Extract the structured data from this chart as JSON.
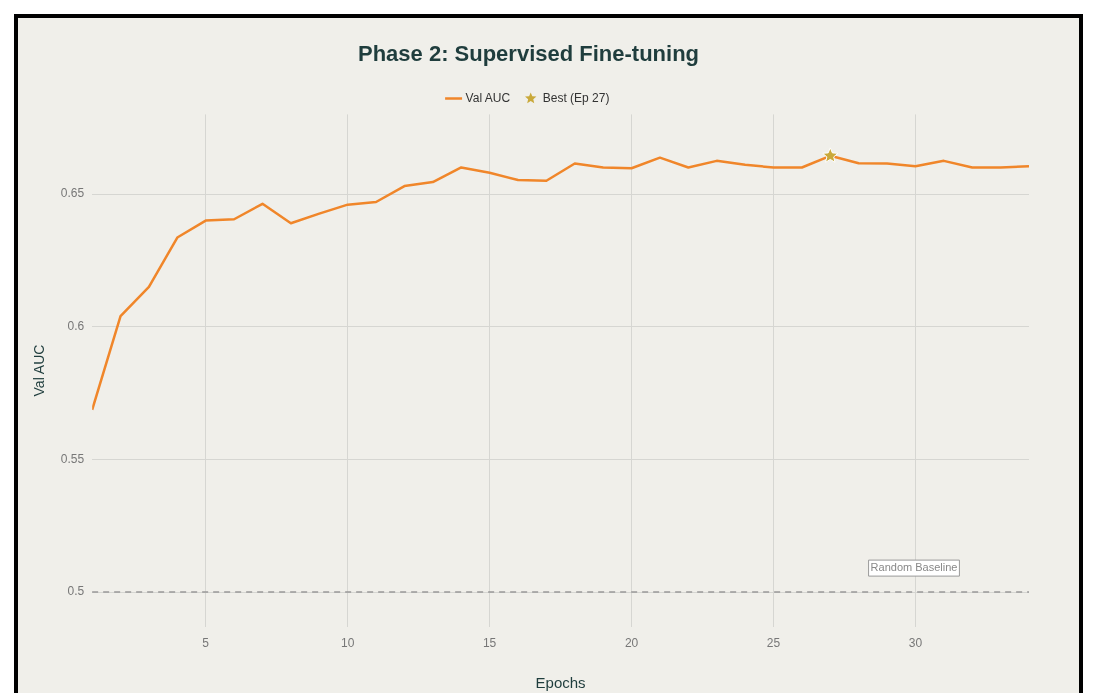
{
  "chart_data": {
    "type": "line",
    "title": "Phase 2: Supervised Fine-tuning",
    "xlabel": "Epochs",
    "ylabel": "Val AUC",
    "x": [
      1,
      2,
      3,
      4,
      5,
      6,
      7,
      8,
      9,
      10,
      11,
      12,
      13,
      14,
      15,
      16,
      17,
      18,
      19,
      20,
      21,
      22,
      23,
      24,
      25,
      26,
      27,
      28,
      29,
      30,
      31,
      32,
      33,
      34
    ],
    "series": [
      {
        "name": "Val AUC",
        "color": "#f0862a",
        "marker": "none",
        "values": [
          0.5687,
          0.604,
          0.615,
          0.6336,
          0.64,
          0.6405,
          0.6463,
          0.639,
          0.6426,
          0.646,
          0.647,
          0.653,
          0.6545,
          0.66,
          0.658,
          0.6553,
          0.655,
          0.6615,
          0.66,
          0.6597,
          0.6637,
          0.66,
          0.6625,
          0.661,
          0.66,
          0.66,
          0.6644,
          0.6616,
          0.6615,
          0.6605,
          0.6625,
          0.66,
          0.66,
          0.6605
        ]
      },
      {
        "name": "Best (Ep 27)",
        "type": "scatter",
        "color": "#c9a93a",
        "marker": "star",
        "x": [
          27
        ],
        "values": [
          0.6644
        ]
      }
    ],
    "xlim": [
      1,
      34
    ],
    "xticks": [
      5,
      10,
      15,
      20,
      25,
      30
    ],
    "ylim": [
      0.487,
      0.68
    ],
    "yticks": [
      0.5,
      0.55,
      0.6,
      0.65
    ],
    "ref_lines": [
      {
        "axis": "y",
        "value": 0.5,
        "label": "Random Baseline",
        "color": "#999999",
        "line_style": "dashed"
      }
    ],
    "grid": true,
    "legend": "top",
    "line_style": "solid"
  }
}
